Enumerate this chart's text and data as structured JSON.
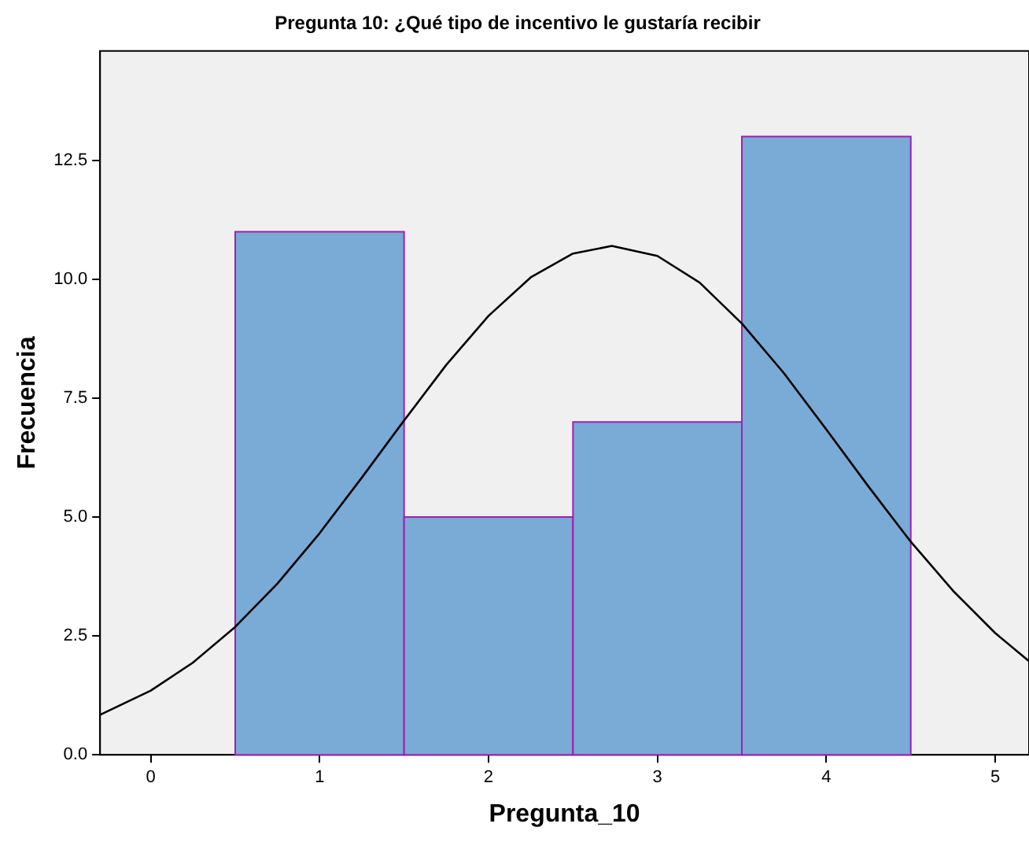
{
  "chart_data": {
    "type": "histogram",
    "title": "Pregunta 10: ¿Qué tipo de incentivo le gustaría recibir",
    "xlabel": "Pregunta_10",
    "ylabel": "Frecuencia",
    "bins": [
      0.5,
      1.5,
      2.5,
      3.5,
      4.5
    ],
    "values": [
      11,
      5,
      7,
      13
    ],
    "color": "#7aaad6",
    "series": [
      {
        "type": "line",
        "color": "#000000",
        "x": [
          -0.3,
          0,
          0.25,
          0.5,
          0.75,
          1,
          1.25,
          1.5,
          1.75,
          2,
          2.25,
          2.5,
          2.73,
          3,
          3.25,
          3.5,
          3.75,
          4,
          4.25,
          4.5,
          4.75,
          5,
          5.2
        ],
        "values": [
          0.84,
          1.35,
          1.94,
          2.69,
          3.6,
          4.66,
          5.83,
          7.03,
          8.2,
          9.23,
          10.04,
          10.54,
          10.7,
          10.49,
          9.93,
          9.07,
          8.02,
          6.84,
          5.64,
          4.48,
          3.45,
          2.56,
          1.97
        ]
      }
    ],
    "xlim": [
      -0.3,
      5.2
    ],
    "xticks": [
      0,
      1,
      2,
      3,
      4,
      5
    ],
    "ylim": [
      0,
      14.8
    ],
    "yticks": [
      {
        "value": 0,
        "label": "0.0"
      },
      {
        "value": 2.5,
        "label": "2.5"
      },
      {
        "value": 5,
        "label": "5.0"
      },
      {
        "value": 7.5,
        "label": "7.5"
      },
      {
        "value": 10,
        "label": "10.0"
      },
      {
        "value": 12.5,
        "label": "12.5"
      }
    ],
    "grid": false,
    "legend": false,
    "marker": "none",
    "line_style": "solid"
  }
}
